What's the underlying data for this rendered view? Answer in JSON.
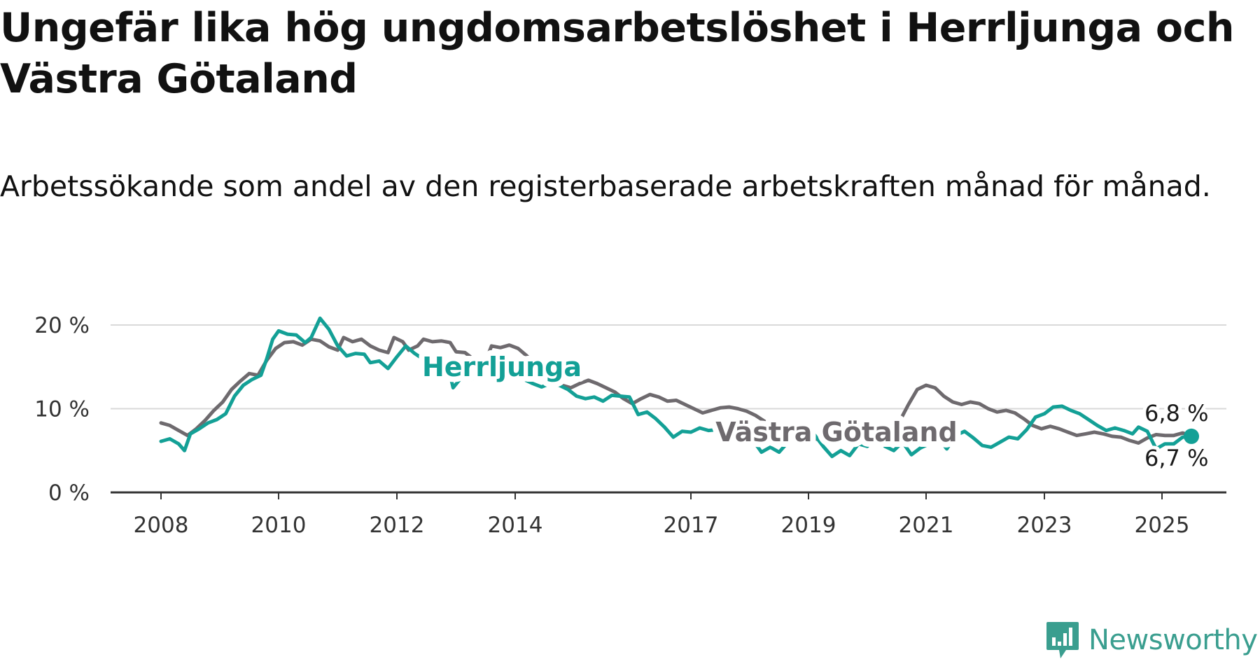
{
  "header": {
    "title": "Ungefär lika hög ungdomsarbetslöshet i Herrljunga och Västra Götaland",
    "subtitle": "Arbetssökande som andel av den registerbaserade arbetskraften månad för månad."
  },
  "brand": {
    "name": "Newsworthy",
    "icon": "newsworthy-logo-icon",
    "color": "#3a9e8f"
  },
  "chart_data": {
    "type": "line",
    "title": "Ungefär lika hög ungdomsarbetslöshet i Herrljunga och Västra Götaland",
    "subtitle": "Arbetssökande som andel av den registerbaserade arbetskraften månad för månad.",
    "xlabel": "",
    "ylabel": "",
    "xlim": [
      2008,
      2025.6
    ],
    "ylim": [
      0,
      20
    ],
    "y_ticks": [
      0,
      10,
      20
    ],
    "y_tick_labels": [
      "0 %",
      "10 %",
      "20 %"
    ],
    "x_ticks": [
      2008,
      2010,
      2012,
      2014,
      2017,
      2019,
      2021,
      2023,
      2025
    ],
    "x_tick_labels": [
      "2008",
      "2010",
      "2012",
      "2014",
      "2017",
      "2019",
      "2021",
      "2023",
      "2025"
    ],
    "grid": "horizontal",
    "series": [
      {
        "name": "Västra Götaland",
        "color": "#6e6a6e",
        "end_label": "6,8 %",
        "points": [
          [
            2008.0,
            8.3
          ],
          [
            2008.15,
            8.0
          ],
          [
            2008.3,
            7.4
          ],
          [
            2008.45,
            6.8
          ],
          [
            2008.6,
            7.6
          ],
          [
            2008.75,
            8.6
          ],
          [
            2008.9,
            9.8
          ],
          [
            2009.05,
            10.8
          ],
          [
            2009.2,
            12.3
          ],
          [
            2009.35,
            13.3
          ],
          [
            2009.5,
            14.2
          ],
          [
            2009.65,
            14.0
          ],
          [
            2009.8,
            15.8
          ],
          [
            2009.95,
            17.2
          ],
          [
            2010.1,
            17.9
          ],
          [
            2010.25,
            18.0
          ],
          [
            2010.4,
            17.6
          ],
          [
            2010.55,
            18.3
          ],
          [
            2010.7,
            18.1
          ],
          [
            2010.85,
            17.4
          ],
          [
            2011.0,
            17.0
          ],
          [
            2011.1,
            18.5
          ],
          [
            2011.25,
            18.0
          ],
          [
            2011.4,
            18.3
          ],
          [
            2011.55,
            17.5
          ],
          [
            2011.7,
            17.0
          ],
          [
            2011.85,
            16.7
          ],
          [
            2011.95,
            18.5
          ],
          [
            2012.1,
            18.0
          ],
          [
            2012.2,
            17.0
          ],
          [
            2012.35,
            17.5
          ],
          [
            2012.45,
            18.3
          ],
          [
            2012.6,
            18.0
          ],
          [
            2012.75,
            18.1
          ],
          [
            2012.9,
            17.9
          ],
          [
            2013.0,
            16.8
          ],
          [
            2013.15,
            16.7
          ],
          [
            2013.3,
            15.9
          ],
          [
            2013.45,
            14.8
          ],
          [
            2013.6,
            17.5
          ],
          [
            2013.75,
            17.3
          ],
          [
            2013.9,
            17.6
          ],
          [
            2014.05,
            17.2
          ],
          [
            2014.2,
            16.3
          ],
          [
            2014.35,
            15.2
          ],
          [
            2014.5,
            14.0
          ],
          [
            2014.65,
            13.4
          ],
          [
            2014.8,
            12.8
          ],
          [
            2014.95,
            12.5
          ],
          [
            2015.1,
            13.0
          ],
          [
            2015.25,
            13.4
          ],
          [
            2015.4,
            13.0
          ],
          [
            2015.55,
            12.5
          ],
          [
            2015.7,
            12.0
          ],
          [
            2015.85,
            11.2
          ],
          [
            2016.0,
            10.6
          ],
          [
            2016.15,
            11.2
          ],
          [
            2016.3,
            11.7
          ],
          [
            2016.45,
            11.4
          ],
          [
            2016.6,
            10.9
          ],
          [
            2016.75,
            11.0
          ],
          [
            2016.9,
            10.5
          ],
          [
            2017.05,
            10.0
          ],
          [
            2017.2,
            9.5
          ],
          [
            2017.35,
            9.8
          ],
          [
            2017.5,
            10.1
          ],
          [
            2017.65,
            10.2
          ],
          [
            2017.8,
            10.0
          ],
          [
            2017.95,
            9.7
          ],
          [
            2018.1,
            9.2
          ],
          [
            2018.25,
            8.5
          ],
          [
            2018.4,
            7.8
          ],
          [
            2018.6,
            7.2
          ],
          [
            2018.8,
            6.8
          ],
          [
            2019.0,
            6.5
          ],
          [
            2019.2,
            6.3
          ],
          [
            2019.4,
            6.3
          ],
          [
            2019.6,
            6.5
          ],
          [
            2019.8,
            6.5
          ],
          [
            2020.0,
            6.6
          ],
          [
            2020.2,
            6.8
          ],
          [
            2020.4,
            7.5
          ],
          [
            2020.55,
            8.5
          ],
          [
            2020.7,
            10.5
          ],
          [
            2020.85,
            12.3
          ],
          [
            2021.0,
            12.8
          ],
          [
            2021.15,
            12.5
          ],
          [
            2021.3,
            11.5
          ],
          [
            2021.45,
            10.8
          ],
          [
            2021.6,
            10.5
          ],
          [
            2021.75,
            10.8
          ],
          [
            2021.9,
            10.6
          ],
          [
            2022.05,
            10.0
          ],
          [
            2022.2,
            9.6
          ],
          [
            2022.35,
            9.8
          ],
          [
            2022.5,
            9.5
          ],
          [
            2022.65,
            8.8
          ],
          [
            2022.8,
            8.0
          ],
          [
            2022.95,
            7.6
          ],
          [
            2023.1,
            7.9
          ],
          [
            2023.25,
            7.6
          ],
          [
            2023.4,
            7.2
          ],
          [
            2023.55,
            6.8
          ],
          [
            2023.7,
            7.0
          ],
          [
            2023.85,
            7.2
          ],
          [
            2024.0,
            7.0
          ],
          [
            2024.15,
            6.7
          ],
          [
            2024.3,
            6.6
          ],
          [
            2024.45,
            6.2
          ],
          [
            2024.6,
            5.9
          ],
          [
            2024.75,
            6.5
          ],
          [
            2024.9,
            6.9
          ],
          [
            2025.05,
            6.8
          ],
          [
            2025.2,
            6.8
          ],
          [
            2025.35,
            7.1
          ],
          [
            2025.5,
            6.8
          ]
        ]
      },
      {
        "name": "Herrljunga",
        "color": "#13a096",
        "end_label": "6,7 %",
        "points": [
          [
            2008.0,
            6.1
          ],
          [
            2008.15,
            6.4
          ],
          [
            2008.3,
            5.8
          ],
          [
            2008.4,
            5.0
          ],
          [
            2008.5,
            7.0
          ],
          [
            2008.65,
            7.6
          ],
          [
            2008.8,
            8.3
          ],
          [
            2008.95,
            8.7
          ],
          [
            2009.1,
            9.4
          ],
          [
            2009.25,
            11.5
          ],
          [
            2009.4,
            12.8
          ],
          [
            2009.55,
            13.5
          ],
          [
            2009.7,
            14.0
          ],
          [
            2009.8,
            16.0
          ],
          [
            2009.9,
            18.3
          ],
          [
            2010.0,
            19.3
          ],
          [
            2010.15,
            18.9
          ],
          [
            2010.3,
            18.8
          ],
          [
            2010.45,
            17.9
          ],
          [
            2010.55,
            18.5
          ],
          [
            2010.7,
            20.8
          ],
          [
            2010.85,
            19.5
          ],
          [
            2011.0,
            17.5
          ],
          [
            2011.15,
            16.3
          ],
          [
            2011.3,
            16.6
          ],
          [
            2011.45,
            16.5
          ],
          [
            2011.55,
            15.5
          ],
          [
            2011.7,
            15.7
          ],
          [
            2011.85,
            14.8
          ],
          [
            2012.0,
            16.2
          ],
          [
            2012.15,
            17.5
          ],
          [
            2012.3,
            16.6
          ],
          [
            2012.45,
            15.9
          ],
          [
            2012.6,
            16.3
          ],
          [
            2012.75,
            15.8
          ],
          [
            2012.85,
            15.6
          ],
          [
            2012.95,
            12.5
          ],
          [
            2013.1,
            13.8
          ],
          [
            2013.25,
            13.5
          ],
          [
            2013.4,
            14.2
          ],
          [
            2013.6,
            14.8
          ],
          [
            2013.8,
            14.5
          ],
          [
            2014.0,
            14.0
          ],
          [
            2014.15,
            13.5
          ],
          [
            2014.3,
            13.0
          ],
          [
            2014.45,
            12.6
          ],
          [
            2014.6,
            13.0
          ],
          [
            2014.75,
            12.8
          ],
          [
            2014.9,
            12.3
          ],
          [
            2015.05,
            11.5
          ],
          [
            2015.2,
            11.2
          ],
          [
            2015.35,
            11.4
          ],
          [
            2015.5,
            10.9
          ],
          [
            2015.65,
            11.6
          ],
          [
            2015.8,
            11.5
          ],
          [
            2015.95,
            11.4
          ],
          [
            2016.1,
            9.3
          ],
          [
            2016.25,
            9.6
          ],
          [
            2016.4,
            8.8
          ],
          [
            2016.55,
            7.8
          ],
          [
            2016.7,
            6.6
          ],
          [
            2016.85,
            7.3
          ],
          [
            2017.0,
            7.2
          ],
          [
            2017.15,
            7.7
          ],
          [
            2017.3,
            7.4
          ],
          [
            2017.45,
            7.5
          ],
          [
            2017.6,
            7.4
          ],
          [
            2017.75,
            7.1
          ],
          [
            2017.9,
            7.7
          ],
          [
            2018.05,
            6.3
          ],
          [
            2018.2,
            4.8
          ],
          [
            2018.35,
            5.4
          ],
          [
            2018.5,
            4.8
          ],
          [
            2018.65,
            6.0
          ],
          [
            2018.8,
            7.5
          ],
          [
            2018.95,
            7.2
          ],
          [
            2019.1,
            6.9
          ],
          [
            2019.25,
            5.5
          ],
          [
            2019.4,
            4.3
          ],
          [
            2019.55,
            5.0
          ],
          [
            2019.7,
            4.4
          ],
          [
            2019.85,
            5.8
          ],
          [
            2020.0,
            5.5
          ],
          [
            2020.15,
            6.6
          ],
          [
            2020.3,
            5.5
          ],
          [
            2020.45,
            5.0
          ],
          [
            2020.6,
            6.0
          ],
          [
            2020.75,
            4.5
          ],
          [
            2020.9,
            5.3
          ],
          [
            2021.05,
            5.8
          ],
          [
            2021.2,
            6.5
          ],
          [
            2021.35,
            5.2
          ],
          [
            2021.5,
            6.8
          ],
          [
            2021.65,
            7.3
          ],
          [
            2021.8,
            6.5
          ],
          [
            2021.95,
            5.6
          ],
          [
            2022.1,
            5.4
          ],
          [
            2022.25,
            6.0
          ],
          [
            2022.4,
            6.6
          ],
          [
            2022.55,
            6.4
          ],
          [
            2022.7,
            7.5
          ],
          [
            2022.85,
            9.0
          ],
          [
            2023.0,
            9.4
          ],
          [
            2023.15,
            10.2
          ],
          [
            2023.3,
            10.3
          ],
          [
            2023.45,
            9.8
          ],
          [
            2023.6,
            9.4
          ],
          [
            2023.75,
            8.7
          ],
          [
            2023.9,
            8.0
          ],
          [
            2024.05,
            7.4
          ],
          [
            2024.2,
            7.7
          ],
          [
            2024.35,
            7.4
          ],
          [
            2024.5,
            7.0
          ],
          [
            2024.6,
            7.8
          ],
          [
            2024.75,
            7.3
          ],
          [
            2024.9,
            5.2
          ],
          [
            2025.05,
            5.8
          ],
          [
            2025.2,
            5.8
          ],
          [
            2025.35,
            6.6
          ],
          [
            2025.5,
            6.7
          ]
        ]
      }
    ],
    "annotations": [
      {
        "text": "Herrljunga",
        "series": "Herrljunga"
      },
      {
        "text": "Västra Götaland",
        "series": "Västra Götaland"
      }
    ]
  }
}
